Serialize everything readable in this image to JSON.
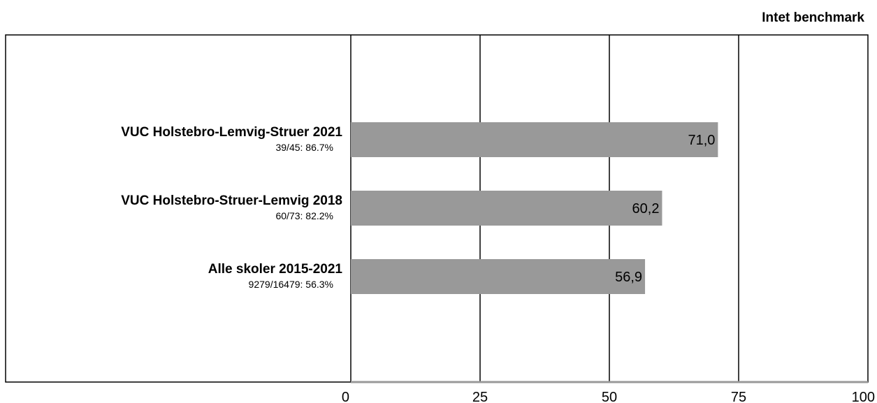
{
  "header": {
    "benchmark_label": "Intet benchmark"
  },
  "chart_data": {
    "type": "bar",
    "orientation": "horizontal",
    "categories": [
      "VUC Holstebro-Lemvig-Struer 2021",
      "VUC Holstebro-Struer-Lemvig 2018",
      "Alle skoler 2015-2021"
    ],
    "sublabels": [
      "39/45: 86.7%",
      "60/73: 82.2%",
      "9279/16479: 56.3%"
    ],
    "values": [
      71.0,
      60.2,
      56.9
    ],
    "value_labels": [
      "71,0",
      "60,2",
      "56,9"
    ],
    "xlim": [
      0,
      100
    ],
    "xticks": [
      0,
      25,
      50,
      75,
      100
    ],
    "xtick_labels": [
      "0",
      "25",
      "50",
      "75",
      "100"
    ],
    "grid": true,
    "legend": "none",
    "title": "",
    "xlabel": "",
    "ylabel": "",
    "colors": {
      "bar": "#999999",
      "grid": "#000000",
      "frame": "#000000"
    }
  }
}
